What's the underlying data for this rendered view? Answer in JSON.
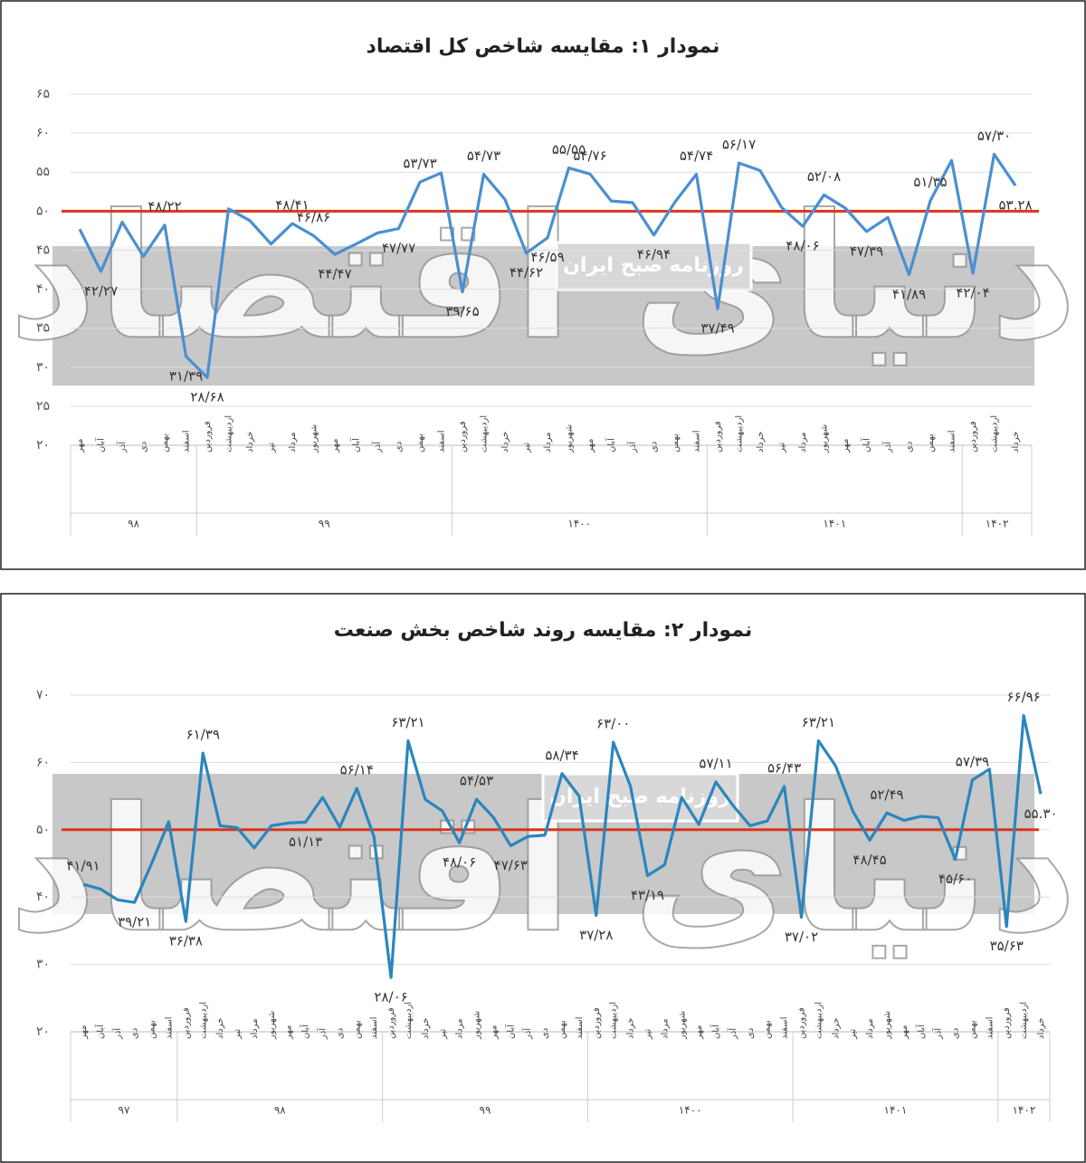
{
  "watermark": {
    "small": "روزنامه صبح ایران",
    "large": "دنیای اقتصاد"
  },
  "chart_data": [
    {
      "type": "line",
      "title": "نمودار ۱: مقایسه شاخص کل اقتصاد",
      "groups": [
        {
          "label": "۹۸",
          "months": [
            "مهر",
            "آبان",
            "آذر",
            "دی",
            "بهمن",
            "اسفند"
          ]
        },
        {
          "label": "۹۹",
          "months": [
            "فروردین",
            "اردیبهشت",
            "خرداد",
            "تیر",
            "مرداد",
            "شهریور",
            "مهر",
            "آبان",
            "آذر",
            "دی",
            "بهمن",
            "اسفند"
          ]
        },
        {
          "label": "۱۴۰۰",
          "months": [
            "فروردین",
            "اردیبهشت",
            "خرداد",
            "تیر",
            "مرداد",
            "شهریور",
            "مهر",
            "آبان",
            "آذر",
            "دی",
            "بهمن",
            "اسفند"
          ]
        },
        {
          "label": "۱۴۰۱",
          "months": [
            "فروردین",
            "اردیبهشت",
            "خرداد",
            "تیر",
            "مرداد",
            "شهریور",
            "مهر",
            "آبان",
            "آذر",
            "دی",
            "بهمن",
            "اسفند"
          ]
        },
        {
          "label": "۱۴۰۲",
          "months": [
            "فروردین",
            "اردیبهشت",
            "خرداد"
          ]
        }
      ],
      "values": [
        47.7,
        42.27,
        48.6,
        44.2,
        48.22,
        31.39,
        28.68,
        50.3,
        48.8,
        45.8,
        48.41,
        46.86,
        44.47,
        45.8,
        47.2,
        47.77,
        53.73,
        54.9,
        39.65,
        54.73,
        51.5,
        44.62,
        46.59,
        55.55,
        54.76,
        51.3,
        51.1,
        46.94,
        51.2,
        54.74,
        37.49,
        56.17,
        55.2,
        50.5,
        48.06,
        52.08,
        50.4,
        47.39,
        49.2,
        41.89,
        51.35,
        56.5,
        42.04,
        57.3,
        53.28
      ],
      "value_labels": [
        null,
        "۴۲/۲۷",
        null,
        null,
        "۴۸/۲۲",
        "۳۱/۳۹",
        "۲۸/۶۸",
        null,
        null,
        null,
        "۴۸/۴۱",
        "۴۶/۸۶",
        "۴۴/۴۷",
        null,
        null,
        "۴۷/۷۷",
        "۵۳/۷۳",
        null,
        "۳۹/۶۵",
        "۵۴/۷۳",
        null,
        "۴۴/۶۲",
        "۴۶/۵۹",
        "۵۵/۵۵",
        "۵۴/۷۶",
        null,
        null,
        "۴۶/۹۴",
        null,
        "۵۴/۷۴",
        "۳۷/۴۹",
        "۵۶/۱۷",
        null,
        null,
        "۴۸/۰۶",
        "۵۲/۰۸",
        null,
        "۴۷/۳۹",
        null,
        "۴۱/۸۹",
        "۵۱/۳۵",
        null,
        "۴۲/۰۴",
        "۵۷/۳۰",
        "۵۳.۲۸"
      ],
      "color": "#4a8fd0",
      "reference_line": 50,
      "reference_color": "#d9361e",
      "ylim": [
        20,
        65
      ],
      "yticks": [
        {
          "value": 20,
          "label": "۲۰"
        },
        {
          "value": 25,
          "label": "۲۵"
        },
        {
          "value": 30,
          "label": "۳۰"
        },
        {
          "value": 35,
          "label": "۳۵"
        },
        {
          "value": 40,
          "label": "۴۰"
        },
        {
          "value": 45,
          "label": "۴۵"
        },
        {
          "value": 50,
          "label": "۵۰"
        },
        {
          "value": 55,
          "label": "۵۵"
        },
        {
          "value": 60,
          "label": "۶۰"
        },
        {
          "value": 65,
          "label": "۶۵"
        }
      ],
      "grid": true
    },
    {
      "type": "line",
      "title": "نمودار ۲: مقایسه روند شاخص بخش صنعت",
      "groups": [
        {
          "label": "۹۷",
          "months": [
            "مهر",
            "آبان",
            "آذر",
            "دی",
            "بهمن",
            "اسفند"
          ]
        },
        {
          "label": "۹۸",
          "months": [
            "فروردین",
            "اردیبهشت",
            "خرداد",
            "تیر",
            "مرداد",
            "شهریور",
            "مهر",
            "آبان",
            "آذر",
            "دی",
            "بهمن",
            "اسفند"
          ]
        },
        {
          "label": "۹۹",
          "months": [
            "فروردین",
            "اردیبهشت",
            "خرداد",
            "تیر",
            "مرداد",
            "شهریور",
            "مهر",
            "آبان",
            "آذر",
            "دی",
            "بهمن",
            "اسفند"
          ]
        },
        {
          "label": "۱۴۰۰",
          "months": [
            "فروردین",
            "اردیبهشت",
            "خرداد",
            "تیر",
            "مرداد",
            "شهریور",
            "مهر",
            "آبان",
            "آذر",
            "دی",
            "بهمن",
            "اسفند"
          ]
        },
        {
          "label": "۱۴۰۱",
          "months": [
            "فروردین",
            "اردیبهشت",
            "خرداد",
            "تیر",
            "مرداد",
            "شهریور",
            "مهر",
            "آبان",
            "آذر",
            "دی",
            "بهمن",
            "اسفند"
          ]
        },
        {
          "label": "۱۴۰۲",
          "months": [
            "فروردین",
            "اردیبهشت",
            "خرداد"
          ]
        }
      ],
      "values": [
        41.91,
        41.2,
        39.6,
        39.21,
        45.0,
        51.2,
        36.38,
        61.39,
        50.6,
        50.3,
        47.3,
        50.6,
        51.0,
        51.13,
        54.8,
        50.4,
        56.14,
        49.0,
        28.06,
        63.21,
        54.5,
        52.8,
        48.06,
        54.53,
        51.8,
        47.63,
        49.0,
        49.2,
        58.34,
        55.0,
        37.28,
        63,
        56.5,
        43.19,
        44.8,
        54.8,
        50.8,
        57.11,
        53.6,
        50.6,
        51.3,
        56.43,
        37.02,
        63.21,
        59.5,
        52.8,
        48.45,
        52.49,
        51.4,
        52.0,
        51.8,
        45.6,
        57.39,
        59.0,
        35.63,
        66.96,
        55.3
      ],
      "value_labels": [
        "۴۱/۹۱",
        null,
        null,
        "۳۹/۲۱",
        null,
        null,
        "۳۶/۳۸",
        "۶۱/۳۹",
        null,
        null,
        null,
        null,
        null,
        "۵۱/۱۳",
        null,
        null,
        "۵۶/۱۴",
        null,
        "۲۸/۰۶",
        "۶۳/۲۱",
        null,
        null,
        "۴۸/۰۶",
        "۵۴/۵۳",
        null,
        "۴۷/۶۳",
        null,
        null,
        "۵۸/۳۴",
        null,
        "۳۷/۲۸",
        "۶۳/۰۰",
        null,
        "۴۳/۱۹",
        null,
        null,
        null,
        "۵۷/۱۱",
        null,
        null,
        null,
        "۵۶/۴۳",
        "۳۷/۰۲",
        "۶۳/۲۱",
        null,
        null,
        "۴۸/۴۵",
        "۵۲/۴۹",
        null,
        null,
        null,
        "۴۵/۶۰",
        "۵۷/۳۹",
        null,
        "۳۵/۶۳",
        "۶۶/۹۶",
        "۵۵.۳۰"
      ],
      "color": "#2a86bd",
      "reference_line": 50,
      "reference_color": "#d9361e",
      "ylim": [
        20,
        70
      ],
      "yticks": [
        {
          "value": 20,
          "label": "۲۰"
        },
        {
          "value": 30,
          "label": "۳۰"
        },
        {
          "value": 40,
          "label": "۴۰"
        },
        {
          "value": 50,
          "label": "۵۰"
        },
        {
          "value": 60,
          "label": "۶۰"
        },
        {
          "value": 70,
          "label": "۷۰"
        }
      ],
      "grid": true
    }
  ]
}
